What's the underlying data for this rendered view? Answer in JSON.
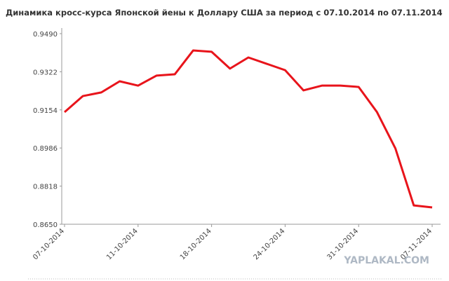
{
  "chart_data": {
    "type": "line",
    "title": "Динамика кросс-курса Японской йены к Доллару США за период с 07.10.2014 по 07.11.2014",
    "categories": [
      "07-10-2014",
      null,
      null,
      null,
      "11-10-2014",
      null,
      null,
      null,
      "18-10-2014",
      null,
      null,
      null,
      "24-10-2014",
      null,
      null,
      null,
      "31-10-2014",
      null,
      null,
      null,
      "07-11-2014"
    ],
    "series": [
      {
        "color": "#e8141b",
        "values": [
          0.9144,
          0.9215,
          0.9231,
          0.928,
          0.9261,
          0.9305,
          0.9311,
          0.9416,
          0.941,
          0.9336,
          0.9385,
          0.9357,
          0.9329,
          0.924,
          0.9261,
          0.9261,
          0.9255,
          0.9144,
          0.8984,
          0.8733,
          0.8724
        ]
      }
    ],
    "ylim": [
      0.865,
      0.949
    ],
    "yticks": [
      {
        "value": 0.865,
        "label": "0.8650"
      },
      0.8818,
      0.8986,
      0.9154,
      0.9322,
      {
        "value": 0.949,
        "label": "0.9490"
      }
    ],
    "watermark": "YAPLAKAL.COM"
  }
}
